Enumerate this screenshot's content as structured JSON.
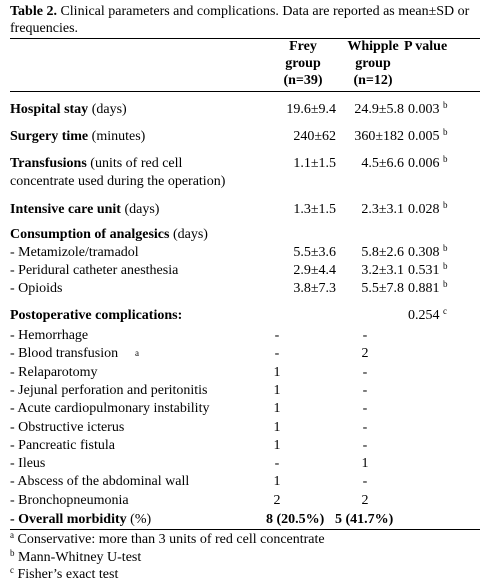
{
  "caption": {
    "label": "Table 2.",
    "text": " Clinical parameters and complications. Data are reported as mean±SD or frequencies."
  },
  "columns": {
    "frey": [
      "Frey",
      "group",
      "(n=39)"
    ],
    "whipple": [
      "Whipple",
      "group",
      "(n=12)"
    ],
    "pvalue": "P value"
  },
  "rows": {
    "hospital": {
      "bold": "Hospital stay",
      "rest": " (days)",
      "frey": "19.6±9.4",
      "whipple": "24.9±5.8",
      "p": "0.003",
      "sup": "b"
    },
    "surgery": {
      "bold": "Surgery time",
      "rest": " (minutes)",
      "frey": "240±62",
      "whipple": "360±182",
      "p": "0.005",
      "sup": "b"
    },
    "transfusions": {
      "bold": "Transfusions",
      "rest": " (units of red cell",
      "line2": "concentrate used during the operation)",
      "frey": "1.1±1.5",
      "whipple": "4.5±6.6",
      "p": "0.006",
      "sup": "b"
    },
    "icu": {
      "bold": "Intensive care unit",
      "rest": " (days)",
      "frey": "1.3±1.5",
      "whipple": "2.3±3.1",
      "p": "0.028",
      "sup": "b"
    },
    "analgesics": {
      "bold": "Consumption of analgesics",
      "rest": " (days)"
    },
    "metamizole": {
      "label": "- Metamizole/tramadol",
      "frey": "5.5±3.6",
      "whipple": "5.8±2.6",
      "p": "0.308",
      "sup": "b"
    },
    "peridural": {
      "label": "- Peridural catheter anesthesia",
      "frey": "2.9±4.4",
      "whipple": "3.2±3.1",
      "p": "0.531",
      "sup": "b"
    },
    "opioids": {
      "label": "- Opioids",
      "frey": "3.8±7.3",
      "whipple": "5.5±7.8",
      "p": "0.881",
      "sup": "b"
    },
    "postop": {
      "bold": "Postoperative complications:",
      "p": "0.254",
      "sup": "c"
    }
  },
  "complications": [
    {
      "label": "- Hemorrhage",
      "frey": "-",
      "whipple": "-"
    },
    {
      "label": "- Blood transfusion",
      "sup": "a",
      "frey": "-",
      "whipple": "2"
    },
    {
      "label": "- Relaparotomy",
      "frey": "1",
      "whipple": "-"
    },
    {
      "label": "- Jejunal perforation and peritonitis",
      "frey": "1",
      "whipple": "-"
    },
    {
      "label": "- Acute cardiopulmonary instability",
      "frey": "1",
      "whipple": "-"
    },
    {
      "label": "- Obstructive icterus",
      "frey": "1",
      "whipple": "-"
    },
    {
      "label": "- Pancreatic fistula",
      "frey": "1",
      "whipple": "-"
    },
    {
      "label": "- Ileus",
      "frey": "-",
      "whipple": "1"
    },
    {
      "label": "- Abscess of the abdominal wall",
      "frey": "1",
      "whipple": "-"
    },
    {
      "label": "- Bronchopneumonia",
      "frey": "2",
      "whipple": "2"
    }
  ],
  "overall": {
    "bold": "- Overall morbidity",
    "rest": " (%)",
    "frey": "8 (20.5%)",
    "whipple": "5 (41.7%)"
  },
  "footnotes": [
    {
      "sup": "a",
      "text": " Conservative: more than 3 units of red cell concentrate"
    },
    {
      "sup": "b",
      "text": " Mann-Whitney U-test"
    },
    {
      "sup": "c",
      "text": " Fisher’s exact test"
    }
  ]
}
